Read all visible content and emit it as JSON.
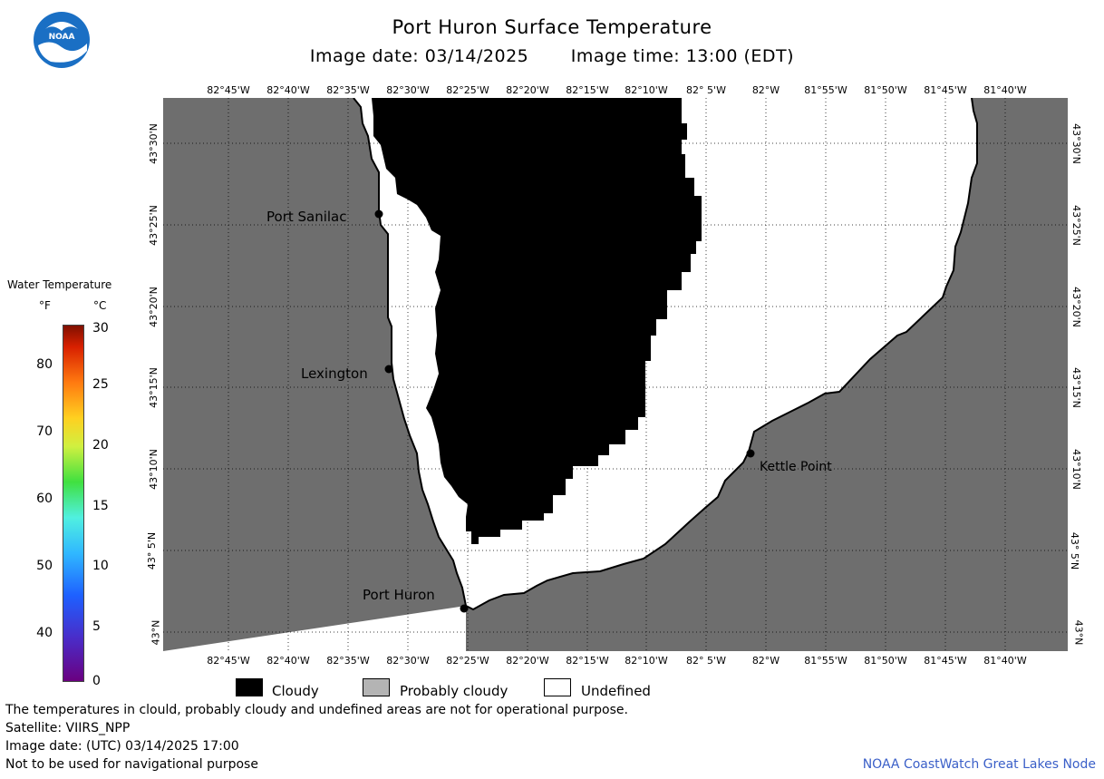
{
  "header": {
    "title": "Port Huron Surface Temperature",
    "image_date": "Image date: 03/14/2025",
    "image_time": "Image time: 13:00 (EDT)"
  },
  "lon_labels": [
    "82°45'W",
    "82°40'W",
    "82°35'W",
    "82°30'W",
    "82°25'W",
    "82°20'W",
    "82°15'W",
    "82°10'W",
    "82° 5'W",
    "82°W",
    "81°55'W",
    "81°50'W",
    "81°45'W",
    "81°40'W"
  ],
  "lat_labels": [
    "43°30'N",
    "43°25'N",
    "43°20'N",
    "43°15'N",
    "43°10'N",
    "43° 5'N",
    "43°N"
  ],
  "places": {
    "port_sanilac": "Port Sanilac",
    "lexington": "Lexington",
    "kettle_point": "Kettle Point",
    "port_huron": "Port Huron"
  },
  "colorbar": {
    "title": "Water Temperature",
    "unit_f": "°F",
    "unit_c": "°C",
    "ticks_f": [
      "80",
      "70",
      "60",
      "50",
      "40"
    ],
    "ticks_c": [
      "30",
      "25",
      "20",
      "15",
      "10",
      "5",
      "0"
    ]
  },
  "legend": {
    "cloudy": "Cloudy",
    "probably_cloudy": "Probably cloudy",
    "undefined": "Undefined",
    "colors": {
      "cloudy": "#000000",
      "probably_cloudy": "#b4b4b4",
      "undefined": "#ffffff",
      "land": "#6e6e6e"
    }
  },
  "notes": {
    "disclaimer": "The temperatures in clould, probably cloudy and undefined areas are not for operational purpose.",
    "satellite": "Satellite: VIIRS_NPP",
    "utc_date": "Image date: (UTC) 03/14/2025  17:00",
    "nav_warning": "Not to be used for navigational purpose",
    "credit": "NOAA CoastWatch Great Lakes Node"
  }
}
